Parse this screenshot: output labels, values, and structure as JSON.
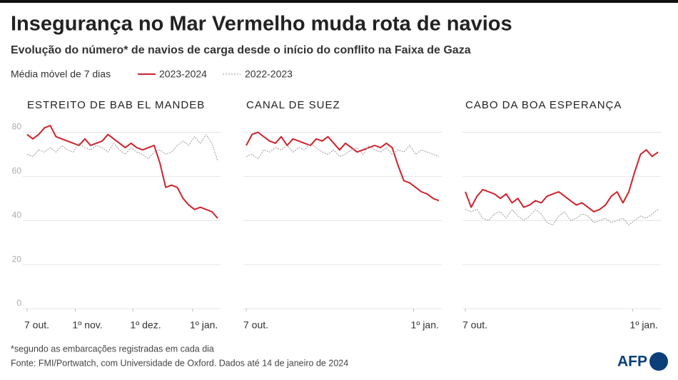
{
  "header": {
    "title": "Insegurança no Mar Vermelho muda rota de navios",
    "subtitle": "Evolução do número* de navios de carga desde o início do conflito na Faixa de Gaza",
    "legend_label": "Média móvel de 7 dias"
  },
  "footer": {
    "note": "*segundo as embarcações registradas em cada dia",
    "source": "Fonte: FMI/Portwatch, com Universidade de Oxford. Dados até 14 de janeiro de 2024",
    "logo": "AFP"
  },
  "chart_data": [
    {
      "type": "line",
      "title": "ESTREITO DE BAB EL MANDEB",
      "x": [
        "2023-10-07",
        "2023-10-10",
        "2023-10-13",
        "2023-10-16",
        "2023-10-19",
        "2023-10-22",
        "2023-10-25",
        "2023-10-28",
        "2023-10-31",
        "2023-11-03",
        "2023-11-06",
        "2023-11-09",
        "2023-11-12",
        "2023-11-15",
        "2023-11-18",
        "2023-11-21",
        "2023-11-24",
        "2023-11-27",
        "2023-11-30",
        "2023-12-03",
        "2023-12-06",
        "2023-12-09",
        "2023-12-12",
        "2023-12-15",
        "2023-12-18",
        "2023-12-21",
        "2023-12-24",
        "2023-12-27",
        "2023-12-30",
        "2024-01-02",
        "2024-01-05",
        "2024-01-08",
        "2024-01-11",
        "2024-01-14"
      ],
      "series": [
        {
          "name": "2023-2024",
          "color": "#d0212b",
          "values": [
            79,
            77,
            79,
            82,
            83,
            78,
            77,
            76,
            75,
            74,
            77,
            74,
            75,
            76,
            79,
            77,
            75,
            73,
            75,
            73,
            72,
            73,
            74,
            66,
            55,
            56,
            55,
            50,
            47,
            45,
            46,
            45,
            44,
            41
          ]
        },
        {
          "name": "2022-2023",
          "color": "#999999",
          "values": [
            70,
            69,
            72,
            71,
            73,
            71,
            74,
            72,
            71,
            75,
            73,
            72,
            74,
            73,
            71,
            75,
            72,
            70,
            73,
            71,
            70,
            68,
            71,
            72,
            70,
            71,
            74,
            76,
            74,
            78,
            75,
            79,
            75,
            67
          ]
        }
      ],
      "xlim": [
        "2023-10-07",
        "2024-01-14"
      ],
      "xticks": [
        {
          "value": "2023-10-07",
          "label": "7 out."
        },
        {
          "value": "2023-11-01",
          "label": "1º nov."
        },
        {
          "value": "2023-12-01",
          "label": "1º dez."
        },
        {
          "value": "2024-01-01",
          "label": "1º jan."
        }
      ],
      "ylim": [
        0,
        85
      ],
      "yticks": [
        0,
        20,
        40,
        60,
        80
      ],
      "grid": true
    },
    {
      "type": "line",
      "title": "CANAL DE SUEZ",
      "x": [
        "2023-10-07",
        "2023-10-10",
        "2023-10-13",
        "2023-10-16",
        "2023-10-19",
        "2023-10-22",
        "2023-10-25",
        "2023-10-28",
        "2023-10-31",
        "2023-11-03",
        "2023-11-06",
        "2023-11-09",
        "2023-11-12",
        "2023-11-15",
        "2023-11-18",
        "2023-11-21",
        "2023-11-24",
        "2023-11-27",
        "2023-11-30",
        "2023-12-03",
        "2023-12-06",
        "2023-12-09",
        "2023-12-12",
        "2023-12-15",
        "2023-12-18",
        "2023-12-21",
        "2023-12-24",
        "2023-12-27",
        "2023-12-30",
        "2024-01-02",
        "2024-01-05",
        "2024-01-08",
        "2024-01-11",
        "2024-01-14"
      ],
      "series": [
        {
          "color": "#d0212b",
          "values": [
            74,
            79,
            80,
            78,
            76,
            75,
            78,
            74,
            77,
            76,
            75,
            74,
            77,
            76,
            78,
            75,
            72,
            75,
            73,
            71,
            72,
            73,
            74,
            73,
            75,
            73,
            65,
            58,
            57,
            55,
            53,
            52,
            50,
            49
          ]
        },
        {
          "color": "#999999",
          "values": [
            69,
            70,
            68,
            72,
            71,
            73,
            72,
            74,
            71,
            73,
            72,
            75,
            73,
            71,
            70,
            72,
            69,
            70,
            72,
            73,
            70,
            74,
            72,
            71,
            73,
            70,
            72,
            71,
            74,
            70,
            72,
            71,
            70,
            69
          ]
        }
      ],
      "xlim": [
        "2023-10-07",
        "2024-01-14"
      ],
      "xticks": [
        {
          "value": "2023-10-07",
          "label": "7 out."
        },
        {
          "value": "2024-01-01",
          "label": "1º jan."
        }
      ],
      "ylim": [
        0,
        85
      ],
      "yticks": [
        0,
        20,
        40,
        60,
        80
      ],
      "grid": true
    },
    {
      "type": "line",
      "title": "CABO DA BOA ESPERANÇA",
      "x": [
        "2023-10-07",
        "2023-10-10",
        "2023-10-13",
        "2023-10-16",
        "2023-10-19",
        "2023-10-22",
        "2023-10-25",
        "2023-10-28",
        "2023-10-31",
        "2023-11-03",
        "2023-11-06",
        "2023-11-09",
        "2023-11-12",
        "2023-11-15",
        "2023-11-18",
        "2023-11-21",
        "2023-11-24",
        "2023-11-27",
        "2023-11-30",
        "2023-12-03",
        "2023-12-06",
        "2023-12-09",
        "2023-12-12",
        "2023-12-15",
        "2023-12-18",
        "2023-12-21",
        "2023-12-24",
        "2023-12-27",
        "2023-12-30",
        "2024-01-02",
        "2024-01-05",
        "2024-01-08",
        "2024-01-11",
        "2024-01-14"
      ],
      "series": [
        {
          "color": "#d0212b",
          "values": [
            53,
            46,
            51,
            54,
            53,
            52,
            50,
            52,
            48,
            50,
            46,
            47,
            49,
            48,
            51,
            52,
            53,
            51,
            49,
            47,
            48,
            46,
            44,
            45,
            47,
            51,
            53,
            48,
            53,
            62,
            70,
            72,
            69,
            71
          ]
        },
        {
          "color": "#999999",
          "values": [
            45,
            44,
            45,
            41,
            40,
            43,
            44,
            41,
            45,
            42,
            40,
            42,
            45,
            43,
            39,
            38,
            42,
            44,
            40,
            41,
            43,
            42,
            39,
            40,
            41,
            39,
            40,
            41,
            38,
            40,
            42,
            41,
            43,
            45
          ]
        }
      ],
      "xlim": [
        "2023-10-07",
        "2024-01-14"
      ],
      "xticks": [
        {
          "value": "2023-10-07",
          "label": "7 out."
        },
        {
          "value": "2024-01-01",
          "label": "1º jan."
        }
      ],
      "ylim": [
        0,
        85
      ],
      "yticks": [
        0,
        20,
        40,
        60,
        80
      ],
      "grid": true
    }
  ]
}
